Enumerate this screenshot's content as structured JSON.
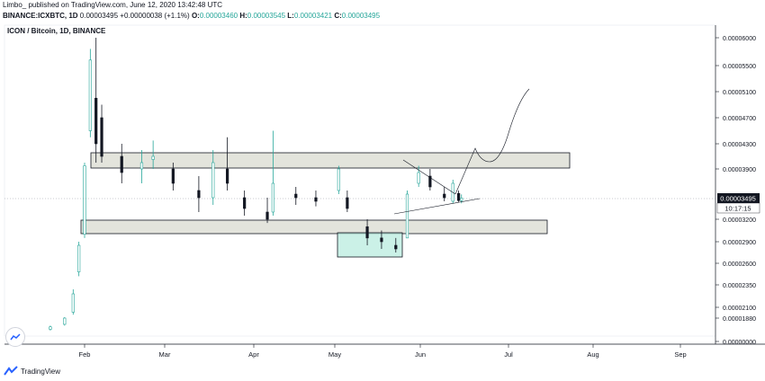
{
  "header": {
    "line1": "Limbo_ published on TradingView.com, June 12, 2020 13:42:48 UTC",
    "ticker": "BINANCE:ICXBTC, 1D",
    "price": "0.00003495",
    "change": "+0.00000038 (+1.1%)",
    "o_label": "O:",
    "o_value": "0.00003460",
    "h_label": "H:",
    "h_value": "0.00003545",
    "l_label": "L:",
    "l_value": "0.00003421",
    "c_label": "C:",
    "c_value": "0.00003495"
  },
  "pane_title": "ICON / Bitcoin, 1D, BINANCE",
  "footer_brand": "TradingView",
  "colors": {
    "up": "#26a69a",
    "down": "#131722",
    "zone_fill": "#d9dbd0",
    "green_fill": "#b9ecdf",
    "axis_text": "#131722"
  },
  "chart_data": {
    "type": "candlestick",
    "title": "ICON / Bitcoin, 1D, BINANCE",
    "x_ticks": [
      "Feb",
      "Mar",
      "Apr",
      "May",
      "Jun",
      "Jul",
      "Aug",
      "Sep"
    ],
    "y_ticks": [
      "0.00006000",
      "0.00005500",
      "0.00005100",
      "0.00004700",
      "0.00004300",
      "0.00003900",
      "0.00003200",
      "0.00002900",
      "0.00002600",
      "0.00002350",
      "0.00002100",
      "0.00001880",
      "0.00000000"
    ],
    "last_price_label": "0.00003495",
    "countdown_label": "10:17:15",
    "price_range": [
      1.65e-05,
      6.5e-05
    ],
    "candles_sampled": [
      {
        "date": "2020-01-20",
        "open": 1.7e-05,
        "high": 1.76e-05,
        "low": 1.68e-05,
        "close": 1.74e-05
      },
      {
        "date": "2020-01-25",
        "open": 1.78e-05,
        "high": 1.9e-05,
        "low": 1.76e-05,
        "close": 1.88e-05
      },
      {
        "date": "2020-01-28",
        "open": 2e-05,
        "high": 2.3e-05,
        "low": 1.95e-05,
        "close": 2.25e-05
      },
      {
        "date": "2020-01-30",
        "open": 2.5e-05,
        "high": 2.9e-05,
        "low": 2.45e-05,
        "close": 2.85e-05
      },
      {
        "date": "2020-02-01",
        "open": 3e-05,
        "high": 4e-05,
        "low": 2.95e-05,
        "close": 3.95e-05
      },
      {
        "date": "2020-02-03",
        "open": 4.5e-05,
        "high": 5.8e-05,
        "low": 4.4e-05,
        "close": 5.6e-05
      },
      {
        "date": "2020-02-05",
        "open": 5e-05,
        "high": 6e-05,
        "low": 4e-05,
        "close": 4.3e-05
      },
      {
        "date": "2020-02-07",
        "open": 4.7e-05,
        "high": 4.9e-05,
        "low": 4e-05,
        "close": 4.1e-05
      },
      {
        "date": "2020-02-14",
        "open": 4.1e-05,
        "high": 4.3e-05,
        "low": 3.7e-05,
        "close": 3.85e-05
      },
      {
        "date": "2020-02-21",
        "open": 3.9e-05,
        "high": 4.2e-05,
        "low": 3.7e-05,
        "close": 4e-05
      },
      {
        "date": "2020-02-25",
        "open": 4.05e-05,
        "high": 4.35e-05,
        "low": 3.9e-05,
        "close": 4.1e-05
      },
      {
        "date": "2020-03-03",
        "open": 3.9e-05,
        "high": 4e-05,
        "low": 3.6e-05,
        "close": 3.7e-05
      },
      {
        "date": "2020-03-12",
        "open": 3.6e-05,
        "high": 3.8e-05,
        "low": 3.3e-05,
        "close": 3.5e-05
      },
      {
        "date": "2020-03-17",
        "open": 3.5e-05,
        "high": 4.2e-05,
        "low": 3.4e-05,
        "close": 4e-05
      },
      {
        "date": "2020-03-22",
        "open": 3.9e-05,
        "high": 4.4e-05,
        "low": 3.6e-05,
        "close": 3.7e-05
      },
      {
        "date": "2020-03-28",
        "open": 3.5e-05,
        "high": 3.6e-05,
        "low": 3.25e-05,
        "close": 3.35e-05
      },
      {
        "date": "2020-04-05",
        "open": 3.3e-05,
        "high": 3.5e-05,
        "low": 3.15e-05,
        "close": 3.2e-05
      },
      {
        "date": "2020-04-07",
        "open": 3.3e-05,
        "high": 4.5e-05,
        "low": 3.25e-05,
        "close": 3.7e-05
      },
      {
        "date": "2020-04-15",
        "open": 3.55e-05,
        "high": 3.65e-05,
        "low": 3.4e-05,
        "close": 3.5e-05
      },
      {
        "date": "2020-04-22",
        "open": 3.5e-05,
        "high": 3.6e-05,
        "low": 3.38e-05,
        "close": 3.45e-05
      },
      {
        "date": "2020-04-30",
        "open": 3.6e-05,
        "high": 3.95e-05,
        "low": 3.55e-05,
        "close": 3.9e-05
      },
      {
        "date": "2020-05-03",
        "open": 3.5e-05,
        "high": 3.6e-05,
        "low": 3.3e-05,
        "close": 3.35e-05
      },
      {
        "date": "2020-05-10",
        "open": 3.1e-05,
        "high": 3.2e-05,
        "low": 2.85e-05,
        "close": 2.95e-05
      },
      {
        "date": "2020-05-15",
        "open": 2.95e-05,
        "high": 3.05e-05,
        "low": 2.8e-05,
        "close": 2.9e-05
      },
      {
        "date": "2020-05-20",
        "open": 2.85e-05,
        "high": 2.95e-05,
        "low": 2.75e-05,
        "close": 2.8e-05
      },
      {
        "date": "2020-05-24",
        "open": 2.95e-05,
        "high": 3.6e-05,
        "low": 2.95e-05,
        "close": 3.55e-05
      },
      {
        "date": "2020-05-28",
        "open": 3.7e-05,
        "high": 3.95e-05,
        "low": 3.65e-05,
        "close": 3.85e-05
      },
      {
        "date": "2020-06-01",
        "open": 3.8e-05,
        "high": 3.9e-05,
        "low": 3.6e-05,
        "close": 3.65e-05
      },
      {
        "date": "2020-06-06",
        "open": 3.55e-05,
        "high": 3.65e-05,
        "low": 3.45e-05,
        "close": 3.5e-05
      },
      {
        "date": "2020-06-09",
        "open": 3.45e-05,
        "high": 3.75e-05,
        "low": 3.42e-05,
        "close": 3.7e-05
      },
      {
        "date": "2020-06-11",
        "open": 3.56e-05,
        "high": 3.6e-05,
        "low": 3.44e-05,
        "close": 3.46e-05
      },
      {
        "date": "2020-06-12",
        "open": 3.46e-05,
        "high": 3.545e-05,
        "low": 3.421e-05,
        "close": 3.495e-05
      }
    ]
  }
}
